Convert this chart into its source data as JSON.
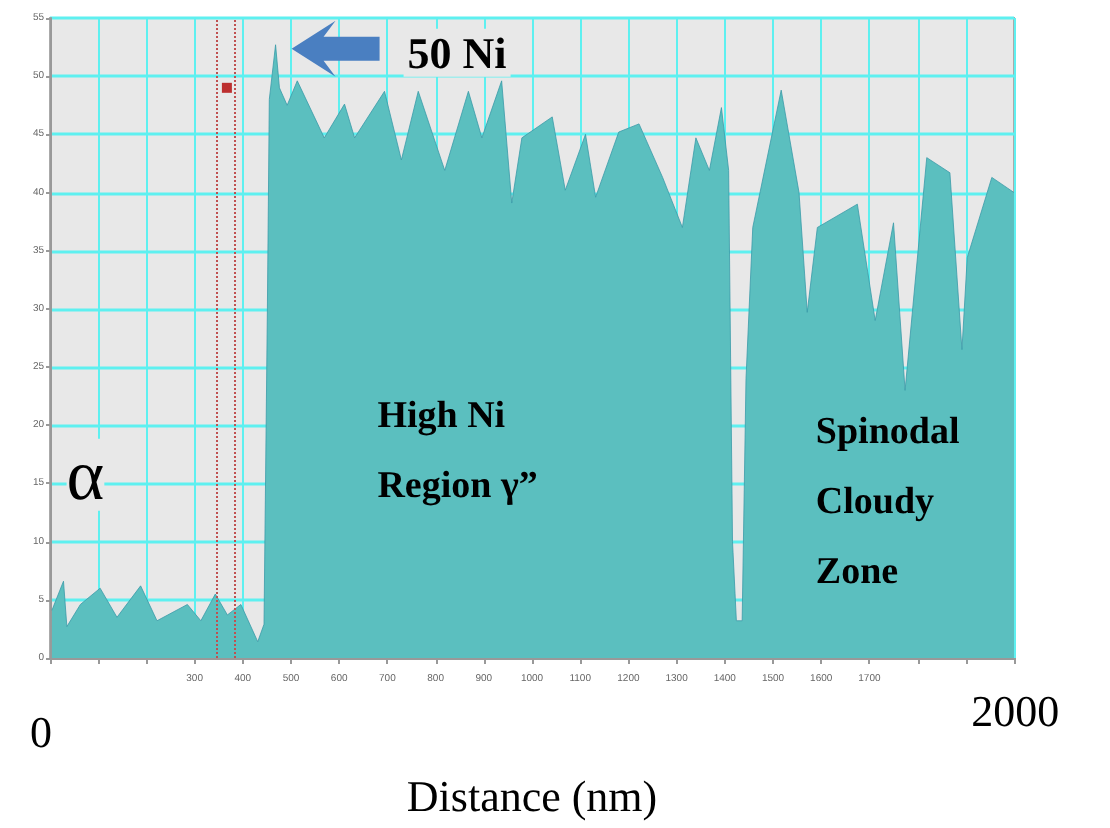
{
  "chart_data": {
    "type": "area",
    "xlabel": "Distance (nm)",
    "annotations": [
      {
        "text": "50 Ni",
        "x": 468,
        "y": 52.7
      },
      "α",
      "High Ni\nRegion γ”",
      "Spinodal\nCloudy\nZone",
      "0",
      "2000"
    ],
    "xlim": [
      0,
      2000
    ],
    "xticks": [
      {
        "value": 0,
        "label": null
      },
      {
        "value": 100,
        "label": null
      },
      {
        "value": 200,
        "label": null
      },
      300,
      400,
      500,
      600,
      700,
      800,
      900,
      1000,
      1100,
      1200,
      1300,
      1400,
      1500,
      1600,
      1700,
      {
        "value": 1800,
        "label": null
      },
      {
        "value": 1900,
        "label": null
      },
      {
        "value": 2000,
        "label": null
      }
    ],
    "ylim": [
      0,
      55
    ],
    "yticks": [
      0,
      5,
      10,
      15,
      20,
      25,
      30,
      35,
      40,
      45,
      50,
      55
    ],
    "grid": true,
    "marker": "none",
    "ref_lines": [
      {
        "axis": "x",
        "value": 346,
        "color": "#c05050",
        "line_style": "dotted"
      },
      {
        "axis": "x",
        "value": 383,
        "color": "#c05050",
        "line_style": "dotted"
      }
    ],
    "series": [
      {
        "color": "#5bbfbf",
        "x": [
          4,
          28,
          35,
          63,
          104,
          139,
          188,
          222,
          285,
          313,
          343,
          368,
          396,
          431,
          444,
          451,
          455,
          468,
          476,
          492,
          513,
          569,
          611,
          632,
          694,
          729,
          764,
          819,
          868,
          896,
          937,
          958,
          979,
          1042,
          1069,
          1111,
          1132,
          1180,
          1222,
          1271,
          1312,
          1340,
          1368,
          1393,
          1408,
          1416,
          1424,
          1436,
          1444,
          1458,
          1517,
          1554,
          1571,
          1592,
          1675,
          1712,
          1750,
          1774,
          1819,
          1867,
          1892,
          1903,
          1954,
          1986,
          2000
        ],
        "values": [
          4.1,
          6.6,
          2.7,
          4.6,
          6,
          3.5,
          6.2,
          3.2,
          4.6,
          3.2,
          5.5,
          3.7,
          4.6,
          1.4,
          2.9,
          30,
          48,
          52.7,
          49,
          47.5,
          49.6,
          44.7,
          47.6,
          44.7,
          48.7,
          42.8,
          48.7,
          41.9,
          48.7,
          44.7,
          49.6,
          39.1,
          44.7,
          46.5,
          40.2,
          45,
          39.6,
          45.2,
          45.9,
          41.3,
          37,
          44.7,
          41.9,
          47.3,
          41.9,
          10,
          3.2,
          3.2,
          24,
          37,
          48.8,
          40,
          29.7,
          37,
          39,
          29,
          37.4,
          23,
          43,
          41.7,
          26.5,
          34.4,
          41.3,
          40.4,
          40
        ]
      },
      {
        "type": "scatter",
        "color": "#b00000",
        "marker": "square",
        "x": [
          367
        ],
        "values": [
          49
        ]
      }
    ]
  }
}
